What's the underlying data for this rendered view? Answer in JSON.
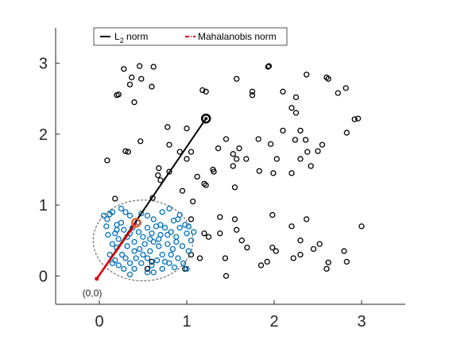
{
  "chart_data": {
    "type": "scatter",
    "title": "",
    "xlabel": "",
    "ylabel": "",
    "xlim": [
      -0.5,
      3.5
    ],
    "ylim": [
      -0.4,
      3.5
    ],
    "x_ticks": [
      0,
      1,
      2,
      3
    ],
    "y_ticks": [
      0,
      1,
      2,
      3
    ],
    "grid": false,
    "legend_position": "top",
    "legend": {
      "l2_label_main": "L",
      "l2_label_sub": "2",
      "l2_label_rest": " norm",
      "mahal_label": "Mahalanobis norm"
    },
    "origin_label": "(0,0)",
    "colors": {
      "black_points": "#000000",
      "blue_points": "#0072BD",
      "l2_line": "#000000",
      "mahal_line": "#e00000",
      "highlight_point": "#e06030",
      "circle": "#555555"
    },
    "origin": [
      -0.03,
      -0.04
    ],
    "l2_endpoint": [
      1.22,
      2.22
    ],
    "mahal_endpoint": [
      0.42,
      0.75
    ],
    "circle_center": [
      0.5,
      0.5
    ],
    "circle_radius": 0.57,
    "series": [
      {
        "name": "",
        "color": "black",
        "points": [
          [
            0.2,
            2.55
          ],
          [
            0.22,
            2.56
          ],
          [
            0.28,
            2.92
          ],
          [
            0.35,
            2.7
          ],
          [
            0.37,
            2.8
          ],
          [
            0.4,
            2.45
          ],
          [
            0.46,
            2.96
          ],
          [
            0.48,
            2.78
          ],
          [
            0.6,
            2.67
          ],
          [
            0.62,
            2.95
          ],
          [
            1.18,
            2.62
          ],
          [
            1.22,
            2.6
          ],
          [
            1.57,
            2.78
          ],
          [
            1.75,
            2.55
          ],
          [
            1.75,
            2.6
          ],
          [
            1.93,
            2.95
          ],
          [
            1.94,
            2.96
          ],
          [
            2.1,
            2.6
          ],
          [
            2.25,
            2.52
          ],
          [
            2.37,
            2.84
          ],
          [
            2.6,
            2.8
          ],
          [
            2.62,
            2.78
          ],
          [
            2.73,
            2.58
          ],
          [
            2.82,
            2.65
          ],
          [
            2.92,
            2.21
          ],
          [
            2.96,
            2.22
          ],
          [
            0.09,
            1.63
          ],
          [
            0.3,
            1.76
          ],
          [
            0.33,
            1.75
          ],
          [
            0.47,
            1.9
          ],
          [
            0.78,
            2.1
          ],
          [
            1.0,
            2.08
          ],
          [
            0.8,
            1.85
          ],
          [
            0.92,
            1.75
          ],
          [
            1.0,
            1.65
          ],
          [
            1.05,
            1.75
          ],
          [
            0.68,
            1.52
          ],
          [
            0.67,
            1.42
          ],
          [
            0.7,
            1.35
          ],
          [
            0.8,
            1.47
          ],
          [
            1.12,
            1.4
          ],
          [
            1.2,
            1.3
          ],
          [
            1.36,
            1.8
          ],
          [
            1.45,
            1.93
          ],
          [
            1.53,
            1.72
          ],
          [
            1.57,
            1.65
          ],
          [
            1.6,
            1.8
          ],
          [
            1.68,
            1.65
          ],
          [
            1.53,
            1.55
          ],
          [
            1.82,
            1.93
          ],
          [
            1.96,
            1.86
          ],
          [
            2.03,
            1.65
          ],
          [
            2.1,
            2.05
          ],
          [
            2.2,
            1.45
          ],
          [
            2.24,
            1.92
          ],
          [
            2.3,
            1.65
          ],
          [
            2.36,
            1.92
          ],
          [
            2.38,
            1.75
          ],
          [
            2.42,
            1.55
          ],
          [
            2.2,
            2.37
          ],
          [
            2.25,
            2.3
          ],
          [
            2.3,
            2.05
          ],
          [
            2.5,
            1.76
          ],
          [
            2.55,
            1.85
          ],
          [
            2.83,
            2.02
          ],
          [
            1.3,
            1.5
          ],
          [
            1.31,
            1.47
          ],
          [
            0.95,
            1.2
          ],
          [
            1.22,
            1.28
          ],
          [
            1.55,
            1.25
          ],
          [
            1.83,
            1.48
          ],
          [
            1.99,
            1.45
          ],
          [
            0.18,
            1.09
          ],
          [
            0.61,
            1.1
          ],
          [
            1.07,
            1.05
          ],
          [
            1.38,
            0.83
          ],
          [
            1.38,
            0.6
          ],
          [
            1.55,
            0.8
          ],
          [
            1.57,
            0.65
          ],
          [
            1.63,
            0.5
          ],
          [
            1.69,
            0.4
          ],
          [
            1.85,
            0.15
          ],
          [
            1.92,
            0.2
          ],
          [
            1.98,
            0.4
          ],
          [
            1.98,
            0.86
          ],
          [
            2.2,
            0.7
          ],
          [
            2.3,
            0.3
          ],
          [
            2.3,
            0.5
          ],
          [
            2.37,
            0.8
          ],
          [
            2.45,
            0.38
          ],
          [
            2.6,
            0.1
          ],
          [
            2.62,
            0.19
          ],
          [
            2.8,
            0.35
          ],
          [
            2.83,
            0.2
          ],
          [
            3.0,
            0.7
          ],
          [
            1.2,
            0.6
          ],
          [
            1.25,
            0.55
          ],
          [
            1.44,
            0.25
          ],
          [
            1.45,
            0.0
          ],
          [
            1.05,
            0.8
          ],
          [
            1.15,
            0.25
          ],
          [
            1.05,
            0.3
          ],
          [
            2.02,
            0.35
          ],
          [
            2.22,
            0.25
          ],
          [
            2.52,
            0.45
          ],
          [
            0.55,
            0.1
          ],
          [
            0.6,
            0.2
          ],
          [
            0.98,
            0.1
          ]
        ]
      },
      {
        "name": "",
        "color": "blue",
        "points": [
          [
            0.05,
            0.85
          ],
          [
            0.09,
            0.8
          ],
          [
            0.12,
            0.87
          ],
          [
            0.15,
            0.9
          ],
          [
            0.2,
            0.72
          ],
          [
            0.25,
            0.95
          ],
          [
            0.3,
            0.9
          ],
          [
            0.35,
            0.85
          ],
          [
            0.48,
            0.88
          ],
          [
            0.55,
            0.85
          ],
          [
            0.62,
            0.8
          ],
          [
            0.72,
            0.9
          ],
          [
            0.8,
            0.95
          ],
          [
            0.85,
            0.78
          ],
          [
            0.92,
            0.86
          ],
          [
            0.98,
            0.72
          ],
          [
            1.02,
            0.7
          ],
          [
            0.1,
            0.58
          ],
          [
            0.18,
            0.6
          ],
          [
            0.22,
            0.52
          ],
          [
            0.28,
            0.65
          ],
          [
            0.32,
            0.55
          ],
          [
            0.38,
            0.68
          ],
          [
            0.45,
            0.62
          ],
          [
            0.5,
            0.55
          ],
          [
            0.55,
            0.68
          ],
          [
            0.6,
            0.6
          ],
          [
            0.65,
            0.7
          ],
          [
            0.7,
            0.58
          ],
          [
            0.75,
            0.68
          ],
          [
            0.82,
            0.62
          ],
          [
            0.88,
            0.55
          ],
          [
            0.92,
            0.68
          ],
          [
            1.0,
            0.6
          ],
          [
            1.05,
            0.5
          ],
          [
            1.08,
            0.62
          ],
          [
            0.15,
            0.45
          ],
          [
            0.2,
            0.4
          ],
          [
            0.26,
            0.3
          ],
          [
            0.32,
            0.42
          ],
          [
            0.4,
            0.48
          ],
          [
            0.46,
            0.38
          ],
          [
            0.52,
            0.45
          ],
          [
            0.58,
            0.35
          ],
          [
            0.62,
            0.48
          ],
          [
            0.68,
            0.42
          ],
          [
            0.72,
            0.3
          ],
          [
            0.78,
            0.45
          ],
          [
            0.84,
            0.38
          ],
          [
            0.88,
            0.48
          ],
          [
            0.95,
            0.42
          ],
          [
            1.02,
            0.35
          ],
          [
            0.12,
            0.3
          ],
          [
            0.18,
            0.22
          ],
          [
            0.22,
            0.15
          ],
          [
            0.28,
            0.1
          ],
          [
            0.35,
            0.18
          ],
          [
            0.42,
            0.25
          ],
          [
            0.48,
            0.18
          ],
          [
            0.55,
            0.25
          ],
          [
            0.6,
            0.15
          ],
          [
            0.66,
            0.22
          ],
          [
            0.72,
            0.1
          ],
          [
            0.8,
            0.18
          ],
          [
            0.86,
            0.12
          ],
          [
            0.9,
            0.25
          ],
          [
            0.96,
            0.18
          ],
          [
            1.0,
            0.1
          ],
          [
            0.3,
            0.25
          ],
          [
            0.4,
            0.1
          ],
          [
            0.2,
            0.65
          ],
          [
            0.25,
            0.75
          ],
          [
            0.35,
            0.6
          ],
          [
            0.45,
            0.75
          ],
          [
            0.58,
            0.52
          ],
          [
            0.68,
            0.52
          ],
          [
            0.75,
            0.2
          ],
          [
            0.78,
            0.58
          ],
          [
            0.82,
            0.3
          ],
          [
            0.4,
            0.35
          ],
          [
            0.5,
            0.3
          ],
          [
            0.15,
            0.18
          ],
          [
            0.08,
            0.7
          ],
          [
            0.62,
            0.05
          ],
          [
            0.7,
            0.72
          ],
          [
            0.9,
            0.8
          ],
          [
            0.35,
            0.02
          ],
          [
            0.55,
            0.05
          ]
        ]
      }
    ]
  }
}
